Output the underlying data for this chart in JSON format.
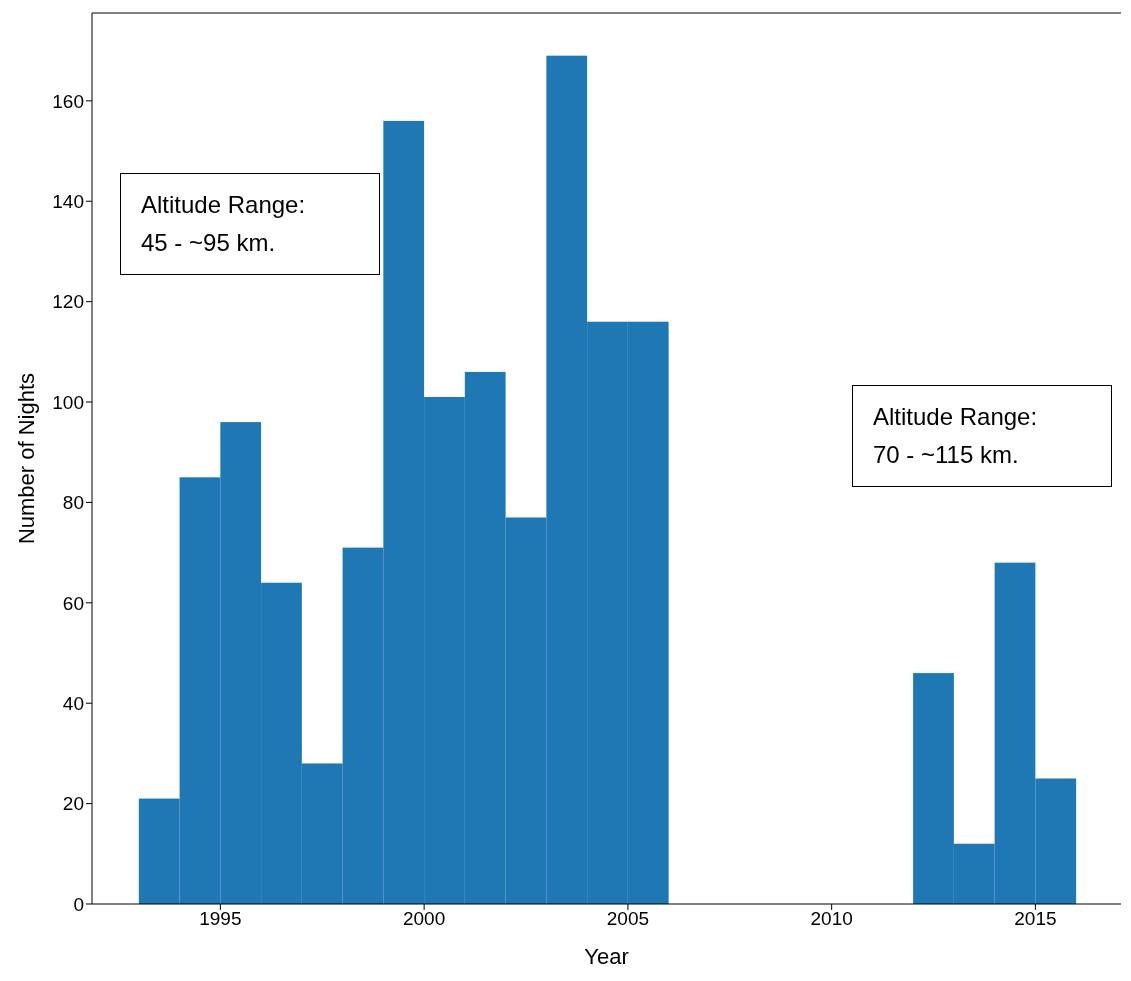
{
  "chart_data": {
    "type": "histogram",
    "xlabel": "Year",
    "ylabel": "Number of Nights",
    "bins": [
      1993,
      1994,
      1995,
      1996,
      1997,
      1998,
      1999,
      2000,
      2001,
      2002,
      2003,
      2004,
      2005,
      2006,
      2007,
      2008,
      2009,
      2010,
      2011,
      2012,
      2013,
      2014,
      2015,
      2016
    ],
    "values": [
      21,
      85,
      96,
      64,
      28,
      71,
      156,
      101,
      106,
      77,
      169,
      116,
      116,
      0,
      0,
      0,
      0,
      0,
      0,
      46,
      12,
      68,
      25
    ],
    "color": "#1f77b4",
    "xlim": [
      1991.85,
      2017.1
    ],
    "xticks": [
      1995,
      2000,
      2005,
      2010,
      2015
    ],
    "ylim": [
      0,
      177.5
    ],
    "yticks": [
      0,
      20,
      40,
      60,
      80,
      100,
      120,
      140,
      160
    ],
    "annotations": [
      "Altitude Range:\n45 - ~95 km.",
      "Altitude Range:\n70 - ~115 km."
    ]
  }
}
